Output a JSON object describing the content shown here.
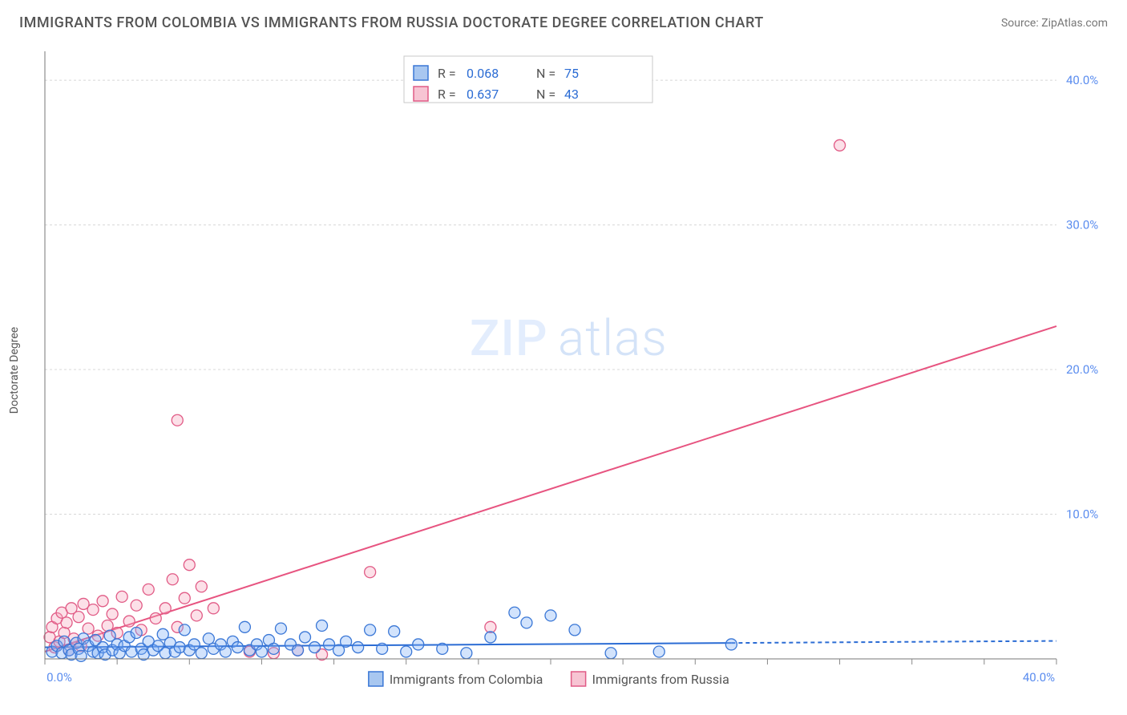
{
  "header": {
    "title": "IMMIGRANTS FROM COLOMBIA VS IMMIGRANTS FROM RUSSIA DOCTORATE DEGREE CORRELATION CHART",
    "source": "Source: ZipAtlas.com"
  },
  "ylabel": "Doctorate Degree",
  "watermark": {
    "bold": "ZIP",
    "light": "atlas"
  },
  "chart": {
    "type": "scatter",
    "xlim": [
      0,
      42
    ],
    "ylim": [
      0,
      42
    ],
    "xtick_labels": [
      "0.0%",
      "40.0%"
    ],
    "xtick_positions_pct": [
      0,
      100
    ],
    "ytick_labels": [
      "10.0%",
      "20.0%",
      "30.0%",
      "40.0%"
    ],
    "ytick_values": [
      10,
      20,
      30,
      40
    ],
    "grid_values": [
      10,
      20,
      30,
      40
    ],
    "minor_tick_count_x": 14,
    "plot_bg": "#ffffff",
    "grid_color": "#d8d8d8",
    "axis_color": "#777777",
    "tick_label_color": "#5b8def",
    "marker_radius": 7,
    "series": {
      "colombia": {
        "label": "Immigrants from Colombia",
        "fill": "#7eaef7",
        "stroke": "#3a77d6",
        "R": "0.068",
        "N": "75",
        "regression": {
          "x1": 0,
          "y1": 0.8,
          "x2": 28.5,
          "y2": 1.1,
          "dash_to_x": 42
        },
        "points": [
          [
            0.3,
            0.5
          ],
          [
            0.5,
            0.9
          ],
          [
            0.7,
            0.4
          ],
          [
            0.8,
            1.2
          ],
          [
            1.0,
            0.6
          ],
          [
            1.1,
            0.3
          ],
          [
            1.3,
            1.1
          ],
          [
            1.4,
            0.7
          ],
          [
            1.5,
            0.2
          ],
          [
            1.6,
            1.4
          ],
          [
            1.8,
            0.9
          ],
          [
            2.0,
            0.5
          ],
          [
            2.1,
            1.3
          ],
          [
            2.2,
            0.4
          ],
          [
            2.4,
            0.8
          ],
          [
            2.5,
            0.3
          ],
          [
            2.7,
            1.6
          ],
          [
            2.8,
            0.6
          ],
          [
            3.0,
            1.0
          ],
          [
            3.1,
            0.4
          ],
          [
            3.3,
            0.9
          ],
          [
            3.5,
            1.5
          ],
          [
            3.6,
            0.5
          ],
          [
            3.8,
            1.8
          ],
          [
            4.0,
            0.7
          ],
          [
            4.1,
            0.3
          ],
          [
            4.3,
            1.2
          ],
          [
            4.5,
            0.6
          ],
          [
            4.7,
            0.9
          ],
          [
            4.9,
            1.7
          ],
          [
            5.0,
            0.4
          ],
          [
            5.2,
            1.1
          ],
          [
            5.4,
            0.5
          ],
          [
            5.6,
            0.8
          ],
          [
            5.8,
            2.0
          ],
          [
            6.0,
            0.6
          ],
          [
            6.2,
            1.0
          ],
          [
            6.5,
            0.4
          ],
          [
            6.8,
            1.4
          ],
          [
            7.0,
            0.7
          ],
          [
            7.3,
            1.0
          ],
          [
            7.5,
            0.5
          ],
          [
            7.8,
            1.2
          ],
          [
            8.0,
            0.8
          ],
          [
            8.3,
            2.2
          ],
          [
            8.5,
            0.6
          ],
          [
            8.8,
            1.0
          ],
          [
            9.0,
            0.5
          ],
          [
            9.3,
            1.3
          ],
          [
            9.5,
            0.7
          ],
          [
            9.8,
            2.1
          ],
          [
            10.2,
            1.0
          ],
          [
            10.5,
            0.6
          ],
          [
            10.8,
            1.5
          ],
          [
            11.2,
            0.8
          ],
          [
            11.5,
            2.3
          ],
          [
            11.8,
            1.0
          ],
          [
            12.2,
            0.6
          ],
          [
            12.5,
            1.2
          ],
          [
            13.0,
            0.8
          ],
          [
            13.5,
            2.0
          ],
          [
            14.0,
            0.7
          ],
          [
            14.5,
            1.9
          ],
          [
            15.0,
            0.5
          ],
          [
            15.5,
            1.0
          ],
          [
            16.5,
            0.7
          ],
          [
            17.5,
            0.4
          ],
          [
            18.5,
            1.5
          ],
          [
            20.0,
            2.5
          ],
          [
            21.0,
            3.0
          ],
          [
            22.0,
            2.0
          ],
          [
            23.5,
            0.4
          ],
          [
            25.5,
            0.5
          ],
          [
            28.5,
            1.0
          ],
          [
            19.5,
            3.2
          ]
        ]
      },
      "russia": {
        "label": "Immigrants from Russia",
        "fill": "#f5a7be",
        "stroke": "#e15b86",
        "R": "0.637",
        "N": "43",
        "regression": {
          "x1": 0,
          "y1": 0.5,
          "x2": 42,
          "y2": 23.0
        },
        "points": [
          [
            0.2,
            1.5
          ],
          [
            0.3,
            2.2
          ],
          [
            0.4,
            0.8
          ],
          [
            0.5,
            2.8
          ],
          [
            0.6,
            1.2
          ],
          [
            0.7,
            3.2
          ],
          [
            0.8,
            1.8
          ],
          [
            0.9,
            2.5
          ],
          [
            1.0,
            0.6
          ],
          [
            1.1,
            3.5
          ],
          [
            1.2,
            1.4
          ],
          [
            1.4,
            2.9
          ],
          [
            1.5,
            0.9
          ],
          [
            1.6,
            3.8
          ],
          [
            1.8,
            2.1
          ],
          [
            2.0,
            3.4
          ],
          [
            2.2,
            1.6
          ],
          [
            2.4,
            4.0
          ],
          [
            2.6,
            2.3
          ],
          [
            2.8,
            3.1
          ],
          [
            3.0,
            1.8
          ],
          [
            3.2,
            4.3
          ],
          [
            3.5,
            2.6
          ],
          [
            3.8,
            3.7
          ],
          [
            4.0,
            2.0
          ],
          [
            4.3,
            4.8
          ],
          [
            4.6,
            2.8
          ],
          [
            5.0,
            3.5
          ],
          [
            5.3,
            5.5
          ],
          [
            5.5,
            2.2
          ],
          [
            5.8,
            4.2
          ],
          [
            6.0,
            6.5
          ],
          [
            6.3,
            3.0
          ],
          [
            6.5,
            5.0
          ],
          [
            7.0,
            3.5
          ],
          [
            8.5,
            0.5
          ],
          [
            9.5,
            0.4
          ],
          [
            10.5,
            0.6
          ],
          [
            11.5,
            0.3
          ],
          [
            13.5,
            6.0
          ],
          [
            18.5,
            2.2
          ],
          [
            5.5,
            16.5
          ],
          [
            33.0,
            35.5
          ]
        ]
      }
    }
  },
  "stat_box": {
    "rows": [
      {
        "swatch": "b",
        "R_label": "R =",
        "R": "0.068",
        "N_label": "N =",
        "N": "75"
      },
      {
        "swatch": "p",
        "R_label": "R =",
        "R": "0.637",
        "N_label": "N =",
        "N": "43"
      }
    ]
  },
  "legend": {
    "items": [
      {
        "swatch": "b",
        "label": "Immigrants from Colombia"
      },
      {
        "swatch": "p",
        "label": "Immigrants from Russia"
      }
    ]
  }
}
